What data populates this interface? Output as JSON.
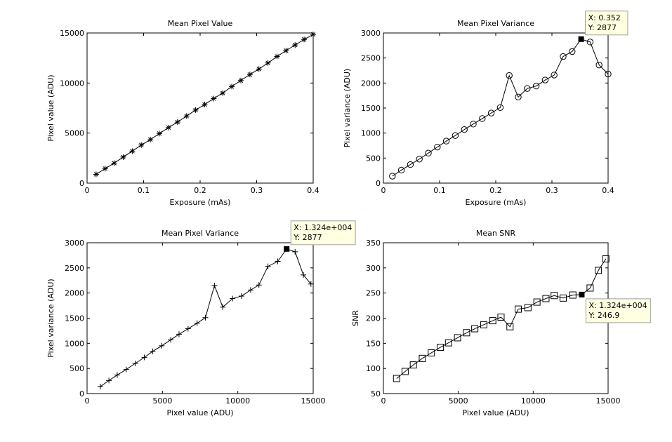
{
  "figure": {
    "background": "#ffffff",
    "line_color": "#000000",
    "datatip_fill": "#ffffe1",
    "datatip_border": "#a0a0a0"
  },
  "chart_data": [
    {
      "type": "line",
      "title": "Mean Pixel Value",
      "xlabel": "Exposure (mAs)",
      "ylabel": "Pixel value (ADU)",
      "xlim": [
        0,
        0.4
      ],
      "ylim": [
        0,
        15000
      ],
      "xticks": [
        0,
        0.1,
        0.2,
        0.3,
        0.4
      ],
      "xticklabels": [
        "0",
        "0.1",
        "0.2",
        "0.3",
        "0.4"
      ],
      "yticks": [
        0,
        5000,
        10000,
        15000
      ],
      "yticklabels": [
        "0",
        "5000",
        "10000",
        "15000"
      ],
      "grid": false,
      "marker": "asterisk",
      "series": [
        {
          "x": [
            0.016,
            0.032,
            0.048,
            0.064,
            0.08,
            0.096,
            0.112,
            0.128,
            0.144,
            0.16,
            0.176,
            0.192,
            0.208,
            0.224,
            0.24,
            0.256,
            0.272,
            0.288,
            0.304,
            0.32,
            0.336,
            0.352,
            0.368,
            0.384,
            0.4
          ],
          "y": [
            880,
            1450,
            2000,
            2600,
            3200,
            3800,
            4350,
            4950,
            5550,
            6100,
            6700,
            7300,
            7850,
            8450,
            9000,
            9650,
            10250,
            10850,
            11400,
            12000,
            12650,
            13240,
            13800,
            14350,
            14850
          ]
        }
      ]
    },
    {
      "type": "line",
      "title": "Mean Pixel Variance",
      "xlabel": "Exposure (mAs)",
      "ylabel": "Pixel variance (ADU)",
      "xlim": [
        0,
        0.4
      ],
      "ylim": [
        0,
        3000
      ],
      "xticks": [
        0,
        0.1,
        0.2,
        0.3,
        0.4
      ],
      "xticklabels": [
        "0",
        "0.1",
        "0.2",
        "0.3",
        "0.4"
      ],
      "yticks": [
        0,
        500,
        1000,
        1500,
        2000,
        2500,
        3000
      ],
      "yticklabels": [
        "0",
        "500",
        "1000",
        "1500",
        "2000",
        "2500",
        "3000"
      ],
      "grid": false,
      "marker": "circle",
      "series": [
        {
          "x": [
            0.016,
            0.032,
            0.048,
            0.064,
            0.08,
            0.096,
            0.112,
            0.128,
            0.144,
            0.16,
            0.176,
            0.192,
            0.208,
            0.224,
            0.24,
            0.256,
            0.272,
            0.288,
            0.304,
            0.32,
            0.336,
            0.352,
            0.368,
            0.384,
            0.4
          ],
          "y": [
            140,
            260,
            370,
            480,
            600,
            720,
            840,
            950,
            1070,
            1180,
            1290,
            1400,
            1510,
            2150,
            1720,
            1890,
            1940,
            2060,
            2160,
            2530,
            2630,
            2877,
            2820,
            2360,
            2180
          ]
        }
      ],
      "datatip": {
        "point_index": 21,
        "label_x": "X: 0.352",
        "label_y": "Y: 2877",
        "placement": "above-right"
      }
    },
    {
      "type": "line",
      "title": "Mean Pixel Variance",
      "xlabel": "Pixel value (ADU)",
      "ylabel": "Pixel variance (ADU)",
      "xlim": [
        0,
        15000
      ],
      "ylim": [
        0,
        3000
      ],
      "xticks": [
        0,
        5000,
        10000,
        15000
      ],
      "xticklabels": [
        "0",
        "5000",
        "10000",
        "15000"
      ],
      "yticks": [
        0,
        500,
        1000,
        1500,
        2000,
        2500,
        3000
      ],
      "yticklabels": [
        "0",
        "500",
        "1000",
        "1500",
        "2000",
        "2500",
        "3000"
      ],
      "grid": false,
      "marker": "plus",
      "series": [
        {
          "x": [
            880,
            1450,
            2000,
            2600,
            3200,
            3800,
            4350,
            4950,
            5550,
            6100,
            6700,
            7300,
            7850,
            8450,
            9000,
            9650,
            10250,
            10850,
            11400,
            12000,
            12650,
            13240,
            13800,
            14350,
            14850
          ],
          "y": [
            140,
            260,
            370,
            480,
            600,
            720,
            840,
            950,
            1070,
            1180,
            1290,
            1400,
            1510,
            2150,
            1720,
            1890,
            1940,
            2060,
            2160,
            2530,
            2630,
            2877,
            2820,
            2360,
            2180
          ]
        }
      ],
      "datatip": {
        "point_index": 21,
        "label_x": "X: 1.324e+004",
        "label_y": "Y: 2877",
        "placement": "above-right"
      }
    },
    {
      "type": "line",
      "title": "Mean SNR",
      "xlabel": "Pixel value (ADU)",
      "ylabel": "SNR",
      "xlim": [
        0,
        15000
      ],
      "ylim": [
        50,
        350
      ],
      "xticks": [
        0,
        5000,
        10000,
        15000
      ],
      "xticklabels": [
        "0",
        "5000",
        "10000",
        "15000"
      ],
      "yticks": [
        50,
        100,
        150,
        200,
        250,
        300,
        350
      ],
      "yticklabels": [
        "50",
        "100",
        "150",
        "200",
        "250",
        "300",
        "350"
      ],
      "grid": false,
      "marker": "square",
      "series": [
        {
          "x": [
            880,
            1450,
            2000,
            2600,
            3200,
            3800,
            4350,
            4950,
            5550,
            6100,
            6700,
            7300,
            7850,
            8450,
            9000,
            9650,
            10250,
            10850,
            11400,
            12000,
            12650,
            13240,
            13800,
            14350,
            14850
          ],
          "y": [
            80,
            94,
            107,
            120,
            131,
            142,
            151,
            161,
            171,
            179,
            187,
            195,
            202,
            183,
            218,
            221,
            232,
            239,
            245,
            240,
            246,
            246.9,
            260,
            295,
            318
          ]
        }
      ],
      "datatip": {
        "point_index": 21,
        "label_x": "X: 1.324e+004",
        "label_y": "Y: 246.9",
        "placement": "below-right"
      }
    }
  ]
}
